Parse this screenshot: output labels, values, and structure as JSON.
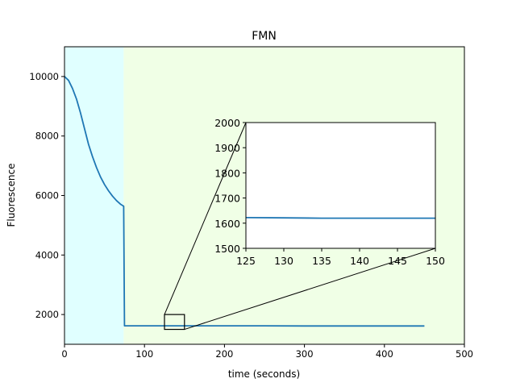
{
  "chart_data": {
    "type": "line",
    "title": "FMN",
    "xlabel": "time (seconds)",
    "ylabel": "Fluorescence",
    "xlim": [
      0,
      500
    ],
    "ylim": [
      1000,
      11000
    ],
    "xticks": [
      0,
      100,
      200,
      300,
      400,
      500
    ],
    "yticks": [
      2000,
      4000,
      6000,
      8000,
      10000
    ],
    "grid": false,
    "legend": "none",
    "shaded_regions": [
      {
        "x_start": 0,
        "x_end": 74,
        "color": "#e0ffff"
      },
      {
        "x_start": 74,
        "x_end": 500,
        "color": "#f0ffe6"
      }
    ],
    "series": [
      {
        "color": "#1f77b4",
        "x": [
          0,
          5,
          10,
          15,
          20,
          25,
          30,
          35,
          40,
          45,
          50,
          55,
          60,
          65,
          70,
          74,
          75,
          80,
          100,
          150,
          200,
          250,
          300,
          350,
          400,
          450
        ],
        "y": [
          10000,
          9870,
          9600,
          9240,
          8780,
          8250,
          7720,
          7310,
          6940,
          6630,
          6370,
          6160,
          5980,
          5830,
          5710,
          5640,
          1620,
          1620,
          1620,
          1620,
          1620,
          1620,
          1615,
          1615,
          1615,
          1615
        ]
      }
    ],
    "zoom_box": {
      "x": [
        125,
        150
      ],
      "y": [
        1500,
        2000
      ]
    },
    "inset": {
      "xlim": [
        125,
        150
      ],
      "ylim": [
        1500,
        2000
      ],
      "xticks": [
        125,
        130,
        135,
        140,
        145,
        150
      ],
      "yticks": [
        1500,
        1600,
        1700,
        1800,
        1900,
        2000
      ],
      "series": {
        "color": "#1f77b4",
        "x": [
          125,
          130,
          135,
          140,
          145,
          150
        ],
        "y": [
          1622,
          1621,
          1620,
          1620,
          1620,
          1620
        ]
      }
    }
  }
}
